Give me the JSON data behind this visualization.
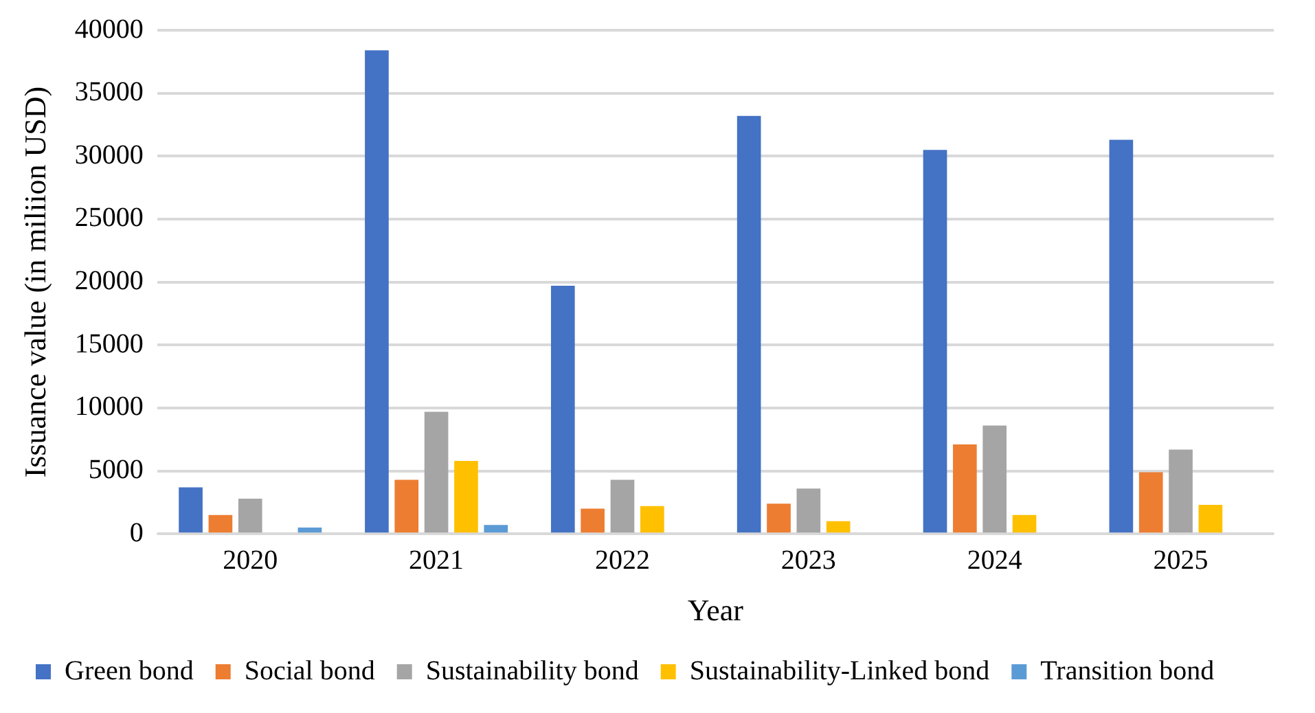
{
  "chart_data": {
    "type": "bar",
    "xlabel": "Year",
    "ylabel": "Issuance value (in miliion USD)",
    "categories": [
      "2020",
      "2021",
      "2022",
      "2023",
      "2024",
      "2025"
    ],
    "series": [
      {
        "name": "Green bond",
        "color": "#4472c4",
        "values": [
          3700,
          38400,
          19700,
          33200,
          30500,
          31300
        ]
      },
      {
        "name": "Social bond",
        "color": "#ed7d31",
        "values": [
          1500,
          4300,
          2000,
          2400,
          7100,
          4900
        ]
      },
      {
        "name": "Sustainability bond",
        "color": "#a5a5a5",
        "values": [
          2800,
          9700,
          4300,
          3600,
          8600,
          6700
        ]
      },
      {
        "name": "Sustainability-Linked bond",
        "color": "#ffc000",
        "values": [
          0,
          5800,
          2200,
          1000,
          1500,
          2300
        ]
      },
      {
        "name": "Transition bond",
        "color": "#5b9bd5",
        "values": [
          500,
          700,
          0,
          0,
          0,
          0
        ]
      }
    ],
    "ylim": [
      0,
      40000
    ],
    "yticks": [
      0,
      5000,
      10000,
      15000,
      20000,
      25000,
      30000,
      35000,
      40000
    ],
    "grid": "y",
    "legend": "bottom"
  }
}
